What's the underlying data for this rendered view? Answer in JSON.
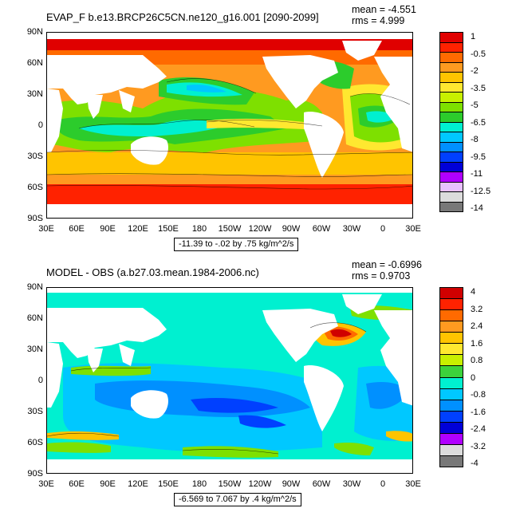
{
  "panels": [
    {
      "title": "EVAP_F b.e13.BRCP26C5CN.ne120_g16.001 [2090-2099]",
      "mean": "mean = -4.551",
      "rms": "rms = 4.999",
      "range": "-11.39 to -.02 by .75 kg/m^2/s",
      "legend_labels": [
        "1",
        "-0.5",
        "-2",
        "-3.5",
        "-5",
        "-6.5",
        "-8",
        "-9.5",
        "-11",
        "-12.5",
        "-14"
      ],
      "legend_colors": [
        "#e00000",
        "#ff2200",
        "#ff6a00",
        "#ff9a20",
        "#ffc400",
        "#ffe830",
        "#c8f000",
        "#7ee000",
        "#2ccc2c",
        "#00f0d0",
        "#00c8ff",
        "#0090ff",
        "#0040ff",
        "#0000d8",
        "#b000ff",
        "#e8c0ff",
        "#dcdcdc",
        "#787878"
      ]
    },
    {
      "title": "MODEL - OBS (a.b27.03.mean.1984-2006.nc)",
      "mean": "mean = -0.6996",
      "rms": "rms = 0.9703",
      "range": "-6.569 to 7.067 by .4 kg/m^2/s",
      "legend_labels": [
        "4",
        "3.2",
        "2.4",
        "1.6",
        "0.8",
        "0",
        "-0.8",
        "-1.6",
        "-2.4",
        "-3.2",
        "-4"
      ],
      "legend_colors": [
        "#d00000",
        "#ff2200",
        "#ff6a00",
        "#ff9a20",
        "#ffc400",
        "#ffe830",
        "#c8f000",
        "#3cd23c",
        "#00f0d0",
        "#00c8ff",
        "#0090ff",
        "#0040ff",
        "#0000d8",
        "#b000ff",
        "#dcdcdc",
        "#787878"
      ]
    }
  ],
  "axes": {
    "lat_labels": [
      "90N",
      "60N",
      "30N",
      "0",
      "30S",
      "60S",
      "90S"
    ],
    "lon_labels": [
      "30E",
      "60E",
      "90E",
      "120E",
      "150E",
      "180",
      "150W",
      "120W",
      "90W",
      "60W",
      "30W",
      "0",
      "30E"
    ]
  }
}
